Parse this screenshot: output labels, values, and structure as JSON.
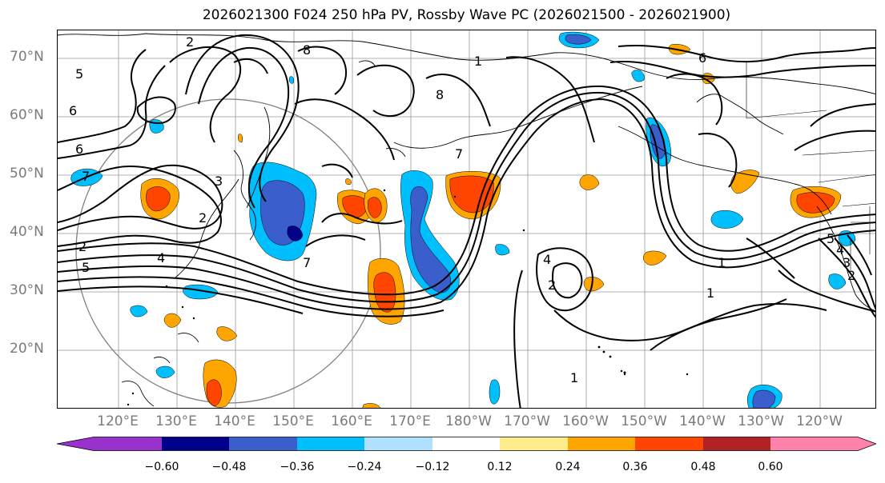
{
  "title": "2026021300 F024 250 hPa PV, Rossby Wave PC (2026021500 - 2026021900)",
  "lat_labels": [
    "70°N",
    "60°N",
    "50°N",
    "40°N",
    "30°N",
    "20°N"
  ],
  "lon_labels": [
    "120°E",
    "130°E",
    "140°E",
    "150°E",
    "160°E",
    "170°E",
    "180°W",
    "170°W",
    "160°W",
    "150°W",
    "140°W",
    "130°W",
    "120°W"
  ],
  "contour_labels": [
    "5",
    "6",
    "6",
    "7",
    "2",
    "2",
    "5",
    "4",
    "3",
    "2",
    "1",
    "1",
    "1",
    "7",
    "8",
    "8",
    "6",
    "4",
    "2",
    "7",
    "5",
    "4",
    "3",
    "2",
    "1"
  ],
  "colorbar": {
    "ticks": [
      "−0.60",
      "−0.48",
      "−0.36",
      "−0.24",
      "−0.12",
      "0.12",
      "0.24",
      "0.36",
      "0.48",
      "0.60"
    ],
    "colors": [
      "#9932cc",
      "#00008b",
      "#3a5fcd",
      "#00bfff",
      "#b0e2ff",
      "#ffffff",
      "#ffec8b",
      "#ffa500",
      "#ff4500",
      "#b22222",
      "#ff82ab"
    ]
  },
  "colors": {
    "grid": "#999999",
    "contour": "#000000",
    "range_ring": "#808080"
  }
}
